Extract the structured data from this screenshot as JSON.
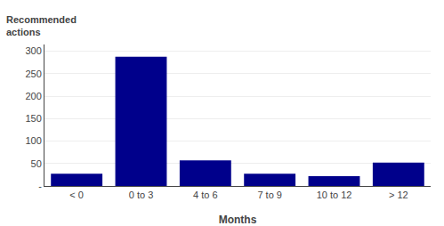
{
  "chart_data": {
    "type": "bar",
    "categories": [
      "< 0",
      "0 to 3",
      "4 to 6",
      "7 to 9",
      "10 to 12",
      "> 12"
    ],
    "values": [
      27,
      288,
      57,
      27,
      22,
      52
    ],
    "color": "#00008B",
    "xlabel": "Months",
    "ylabel": "Recommended\nactions",
    "ylim": [
      0,
      315
    ],
    "yticks": [
      {
        "value": 0,
        "label": "-"
      },
      50,
      100,
      150,
      200,
      250,
      300
    ],
    "grid": true
  }
}
